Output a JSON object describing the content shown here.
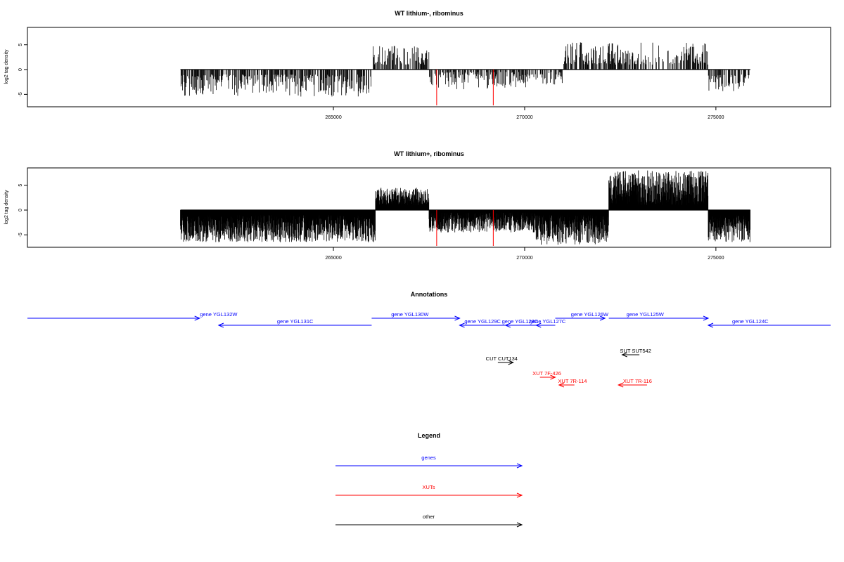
{
  "chart_data": [
    {
      "type": "bar",
      "title": "WT lithium-, ribominus",
      "xlabel": "",
      "ylabel": "log2 tag density",
      "xlim": [
        257000,
        278000
      ],
      "ylim": [
        -7.5,
        8.5
      ],
      "x_ticks": [
        265000,
        270000,
        275000
      ],
      "x_tick_labels": [
        "265000",
        "270000",
        "275000"
      ],
      "y_ticks": [
        -5,
        0,
        5
      ],
      "y_tick_labels": [
        "-5",
        "0",
        "5"
      ],
      "x_start": 261000,
      "x_end": 275900,
      "density": "sparse",
      "segments": [
        {
          "from": 261000,
          "to": 266000,
          "sign": -1,
          "min": 1,
          "max": 5.5
        },
        {
          "from": 266000,
          "to": 267500,
          "sign": 1,
          "min": 1,
          "max": 4.8
        },
        {
          "from": 267500,
          "to": 270300,
          "sign": -1,
          "min": 0.5,
          "max": 4.0
        },
        {
          "from": 270300,
          "to": 271000,
          "sign": -1,
          "min": 0.5,
          "max": 3.0
        },
        {
          "from": 271000,
          "to": 272100,
          "sign": 1,
          "min": 1,
          "max": 5.5
        },
        {
          "from": 272100,
          "to": 274800,
          "sign": 1,
          "min": 1,
          "max": 5.5
        },
        {
          "from": 274800,
          "to": 275900,
          "sign": -1,
          "min": 1,
          "max": 4.5
        }
      ],
      "red_markers": [
        {
          "x": 267700,
          "y": -7.5
        },
        {
          "x": 269180,
          "y": -7.5
        }
      ]
    },
    {
      "type": "bar",
      "title": "WT lithium+, ribominus",
      "xlabel": "",
      "ylabel": "log2 tag density",
      "xlim": [
        257000,
        278000
      ],
      "ylim": [
        -7.5,
        8.5
      ],
      "x_ticks": [
        265000,
        270000,
        275000
      ],
      "x_tick_labels": [
        "265000",
        "270000",
        "275000"
      ],
      "y_ticks": [
        -5,
        0,
        5
      ],
      "y_tick_labels": [
        "-5",
        "0",
        "5"
      ],
      "x_start": 261000,
      "x_end": 275900,
      "density": "dense",
      "segments": [
        {
          "from": 261000,
          "to": 266100,
          "sign": -1,
          "min": 1,
          "max": 6.5
        },
        {
          "from": 266100,
          "to": 267500,
          "sign": 1,
          "min": 1,
          "max": 4.5
        },
        {
          "from": 267500,
          "to": 270300,
          "sign": -1,
          "min": 0.5,
          "max": 4.5
        },
        {
          "from": 270300,
          "to": 272200,
          "sign": -1,
          "min": 1,
          "max": 7.0
        },
        {
          "from": 272200,
          "to": 274800,
          "sign": 1,
          "min": 1,
          "max": 8.0
        },
        {
          "from": 274800,
          "to": 275900,
          "sign": -1,
          "min": 1,
          "max": 6.5
        }
      ],
      "red_markers": [
        {
          "x": 267700,
          "y": -7.5
        },
        {
          "x": 269180,
          "y": -7.5
        }
      ]
    }
  ],
  "annotations": {
    "title": "Annotations",
    "items": [
      {
        "label": "gene YGL132W",
        "from": 257000,
        "to": 261500,
        "row": 1,
        "dir": "right",
        "color": "#0000ff",
        "label_x": 262000
      },
      {
        "label": "gene YGL131C",
        "from": 262000,
        "to": 266000,
        "row": 2,
        "dir": "left",
        "color": "#0000ff",
        "label_x": 264000
      },
      {
        "label": "gene YGL130W",
        "from": 266000,
        "to": 268300,
        "row": 1,
        "dir": "right",
        "color": "#0000ff",
        "label_x": 267000
      },
      {
        "label": "gene YGL129C",
        "from": 268300,
        "to": 269500,
        "row": 2,
        "dir": "left",
        "color": "#0000ff",
        "label_x": 268900
      },
      {
        "label": "gene YGL128C",
        "from": 269500,
        "to": 270300,
        "row": 2,
        "dir": "left",
        "color": "#0000ff",
        "label_x": 269880
      },
      {
        "label": "gene YGL127C",
        "from": 270300,
        "to": 270800,
        "row": 2,
        "dir": "left",
        "color": "#0000ff",
        "label_x": 270600
      },
      {
        "label": "gene YGL126W",
        "from": 270800,
        "to": 272100,
        "row": 1,
        "dir": "right",
        "color": "#0000ff",
        "label_x": 271700
      },
      {
        "label": "gene YGL125W",
        "from": 272200,
        "to": 274800,
        "row": 1,
        "dir": "right",
        "color": "#0000ff",
        "label_x": 273150
      },
      {
        "label": "gene YGL124C",
        "from": 274800,
        "to": 278000,
        "row": 2,
        "dir": "left",
        "color": "#0000ff",
        "label_x": 275900
      },
      {
        "label": "CUT CUT134",
        "from": 269300,
        "to": 269700,
        "row": 4,
        "dir": "right",
        "color": "#000000",
        "label_x": 269400
      },
      {
        "label": "SUT SUT542",
        "from": 272550,
        "to": 273000,
        "row": 3,
        "dir": "left",
        "color": "#000000",
        "label_x": 272900
      },
      {
        "label": "XUT 7F-426",
        "from": 270400,
        "to": 270800,
        "row": 5,
        "dir": "right",
        "color": "#ff0000",
        "label_x": 270580
      },
      {
        "label": "XUT 7R-114",
        "from": 270900,
        "to": 271300,
        "row": 6,
        "dir": "left",
        "color": "#ff0000",
        "label_x": 271250
      },
      {
        "label": "XUT 7R-116",
        "from": 272450,
        "to": 273200,
        "row": 6,
        "dir": "left",
        "color": "#ff0000",
        "label_x": 272950
      }
    ]
  },
  "legend": {
    "title": "Legend",
    "items": [
      {
        "label": "genes",
        "color": "#0000ff"
      },
      {
        "label": "XUTs",
        "color": "#ff0000"
      },
      {
        "label": "other",
        "color": "#000000"
      }
    ]
  }
}
